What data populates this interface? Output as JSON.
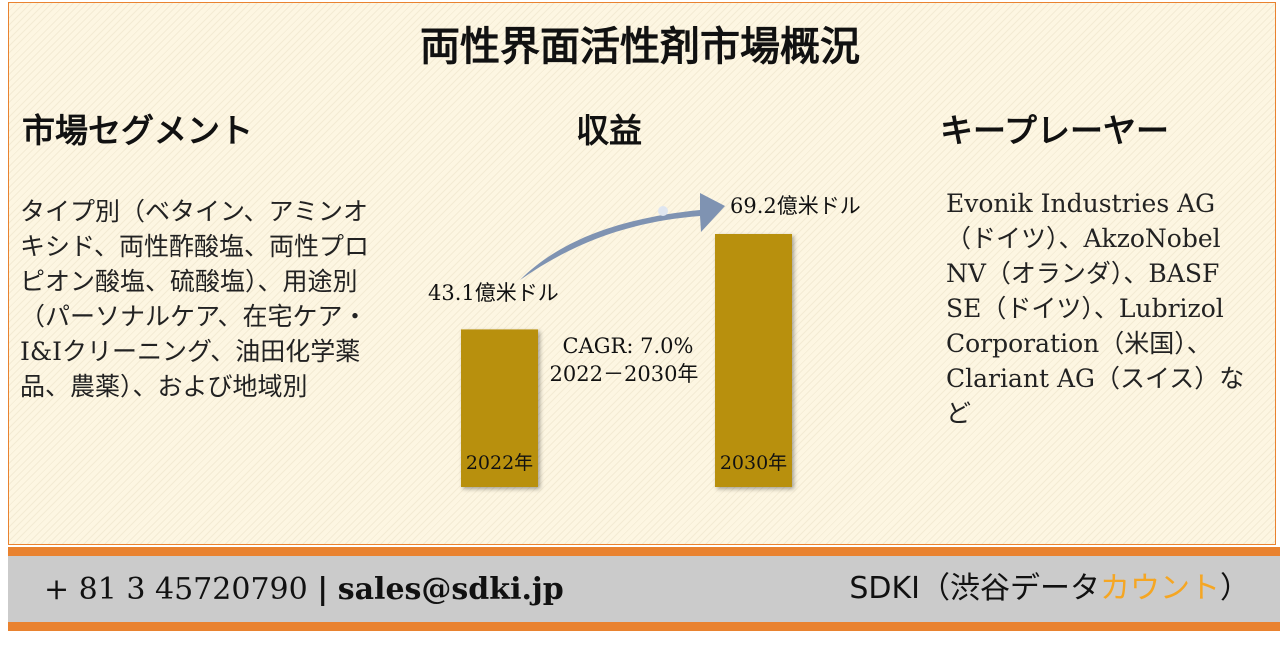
{
  "title": "両性界面活性剤市場概況",
  "segments": {
    "heading": "市場セグメント",
    "text": "タイプ別（ベタイン、アミンオキシド、両性酢酸塩、両性プロピオン酸塩、硫酸塩）、用途別（パーソナルケア、在宅ケア・I&Iクリーニング、油田化学薬品、農薬）、および地域別"
  },
  "revenue": {
    "heading": "収益",
    "cagr": "CAGR: 7.0%",
    "period": "2022－2030年"
  },
  "players": {
    "heading": "キープレーヤー",
    "text": "Evonik Industries AG（ドイツ）、AkzoNobel NV（オランダ）、BASF SE（ドイツ）、Lubrizol Corporation（米国）、Clariant AG（スイス）など"
  },
  "chart_data": {
    "type": "bar",
    "categories": [
      "2022年",
      "2030年"
    ],
    "values": [
      43.1,
      69.2
    ],
    "value_labels": [
      "43.1億米ドル",
      "69.2億米ドル"
    ],
    "unit": "億米ドル",
    "bar_color": "#b8900a",
    "arrow_color": "#7f93b2"
  },
  "footer": {
    "phone": "+ 81 3 45720790",
    "separator": "|",
    "email": "sales@sdki.jp",
    "brand_prefix": "SDKI（渋谷データ",
    "brand_highlight": "カウント",
    "brand_suffix": "）",
    "band_color": "#e9822f",
    "highlight_color": "#f5a623"
  }
}
